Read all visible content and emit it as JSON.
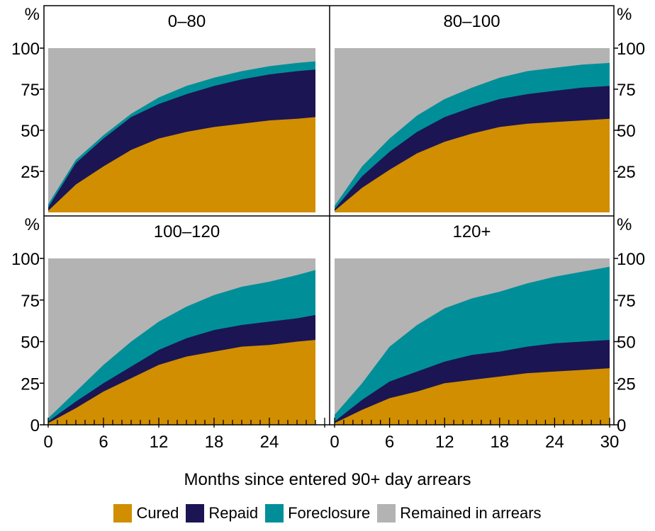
{
  "chart_data": {
    "type": "area",
    "stacked": true,
    "xlabel": "Months since entered 90+ day arrears",
    "x_ticks": [
      0,
      6,
      12,
      18,
      24,
      30
    ],
    "y_ticks": [
      0,
      25,
      50,
      75,
      100
    ],
    "ylim": [
      0,
      100
    ],
    "xlim": [
      0,
      30
    ],
    "y_unit": "%",
    "colors": {
      "Cured": "#d08e00",
      "Repaid": "#1c1553",
      "Foreclosure": "#008f99",
      "Remained in arrears": "#b3b3b3"
    },
    "legend": [
      "Cured",
      "Repaid",
      "Foreclosure",
      "Remained in arrears"
    ],
    "panels": [
      {
        "title": "0–80",
        "x": [
          0,
          3,
          6,
          9,
          12,
          15,
          18,
          21,
          24,
          27,
          29
        ],
        "cumulative": {
          "Cured": [
            1,
            17,
            28,
            38,
            45,
            49,
            52,
            54,
            56,
            57,
            58
          ],
          "Repaid": [
            3,
            30,
            45,
            58,
            66,
            72,
            77,
            81,
            84,
            86,
            87
          ],
          "Foreclosure": [
            5,
            32,
            47,
            60,
            70,
            77,
            82,
            86,
            89,
            91,
            92
          ]
        }
      },
      {
        "title": "80–100",
        "x": [
          0,
          3,
          6,
          9,
          12,
          15,
          18,
          21,
          24,
          27,
          30
        ],
        "cumulative": {
          "Cured": [
            1,
            15,
            26,
            36,
            43,
            48,
            52,
            54,
            55,
            56,
            57
          ],
          "Repaid": [
            2,
            22,
            37,
            49,
            58,
            64,
            69,
            72,
            74,
            76,
            77
          ],
          "Foreclosure": [
            4,
            28,
            45,
            59,
            69,
            76,
            82,
            86,
            88,
            90,
            91
          ]
        }
      },
      {
        "title": "100–120",
        "x": [
          0,
          3,
          6,
          9,
          12,
          15,
          18,
          21,
          24,
          27,
          29
        ],
        "cumulative": {
          "Cured": [
            1,
            10,
            20,
            28,
            36,
            41,
            44,
            47,
            48,
            50,
            51
          ],
          "Repaid": [
            2,
            14,
            25,
            35,
            45,
            52,
            57,
            60,
            62,
            64,
            66
          ],
          "Foreclosure": [
            4,
            20,
            36,
            50,
            62,
            71,
            78,
            83,
            86,
            90,
            93
          ]
        }
      },
      {
        "title": "120+",
        "x": [
          0,
          3,
          6,
          9,
          12,
          15,
          18,
          21,
          24,
          27,
          30
        ],
        "cumulative": {
          "Cured": [
            1,
            9,
            16,
            20,
            25,
            27,
            29,
            31,
            32,
            33,
            34
          ],
          "Repaid": [
            2,
            15,
            26,
            32,
            38,
            42,
            44,
            47,
            49,
            50,
            51
          ],
          "Foreclosure": [
            6,
            25,
            47,
            60,
            70,
            76,
            80,
            85,
            89,
            92,
            95
          ]
        }
      }
    ]
  }
}
